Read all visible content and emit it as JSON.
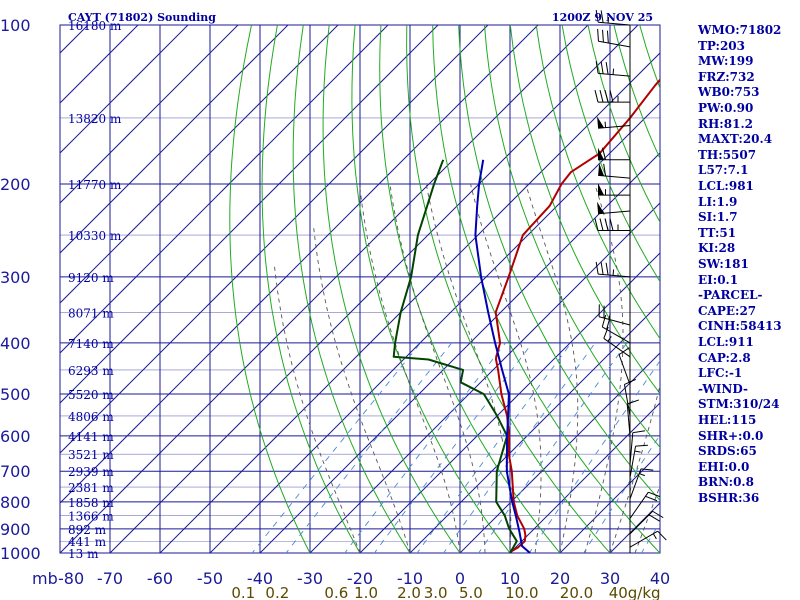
{
  "header": {
    "station": "CAYT (71802) Sounding",
    "time": "1200Z  9 NOV 25"
  },
  "colors": {
    "grid": "#1a1a9a",
    "dry_adiabat": "#22aa22",
    "moist_adiabat": "#555555",
    "mixing_ratio": "#4a8ad0",
    "temperature": "#b00000",
    "dewpoint": "#004400",
    "parcel": "#0000b0",
    "label": "#0000a0",
    "mixing_label": "#5a4a00"
  },
  "chart_data": {
    "type": "line",
    "title": "CAYT (71802) Sounding",
    "x_label": "",
    "y_label": "mb",
    "xlim": [
      -80,
      40
    ],
    "ylim": [
      1000,
      100
    ],
    "y_scale": "log",
    "grid": true,
    "x_ticks": [
      "-80",
      "-70",
      "-60",
      "-50",
      "-40",
      "-30",
      "-20",
      "-10",
      "0",
      "10",
      "20",
      "30",
      "40"
    ],
    "pressure_ticks": [
      100,
      200,
      300,
      400,
      500,
      600,
      700,
      800,
      900,
      1000
    ],
    "height_labels": [
      {
        "p": 100,
        "text": "16180 m"
      },
      {
        "p": 150,
        "text": "13820 m"
      },
      {
        "p": 200,
        "text": "11770 m"
      },
      {
        "p": 250,
        "text": "10330 m"
      },
      {
        "p": 300,
        "text": "9120 m"
      },
      {
        "p": 350,
        "text": "8071 m"
      },
      {
        "p": 400,
        "text": "7140 m"
      },
      {
        "p": 450,
        "text": "6293 m"
      },
      {
        "p": 500,
        "text": "5520 m"
      },
      {
        "p": 550,
        "text": "4806 m"
      },
      {
        "p": 600,
        "text": "4141 m"
      },
      {
        "p": 650,
        "text": "3521 m"
      },
      {
        "p": 700,
        "text": "2939 m"
      },
      {
        "p": 750,
        "text": "2381 m"
      },
      {
        "p": 800,
        "text": "1858 m"
      },
      {
        "p": 850,
        "text": "1366 m"
      },
      {
        "p": 900,
        "text": "892 m"
      },
      {
        "p": 950,
        "text": "441 m"
      },
      {
        "p": 1000,
        "text": "13 m"
      }
    ],
    "mixing_ratio_labels": [
      "0.1",
      "0.2",
      "0.6",
      "1.0",
      "2.0",
      "3.0",
      "5.0",
      "10.0",
      "20.0",
      "40g/kg"
    ],
    "mixing_ratio_values": [
      0.1,
      0.2,
      0.6,
      1.0,
      2.0,
      3.0,
      5.0,
      10.0,
      20.0,
      40.0
    ],
    "mixing_ratio_label_pressure": 1050,
    "dry_adiabats_thetaC": [
      -30,
      -20,
      -10,
      0,
      10,
      20,
      30,
      40,
      50,
      60,
      70,
      80,
      90,
      100,
      110,
      120,
      130,
      140,
      150,
      160,
      170,
      180
    ],
    "moist_adiabats_thetaC": [
      -20,
      -10,
      0,
      5,
      10,
      15,
      20,
      25,
      30,
      35
    ],
    "skew": 1.0,
    "series": [
      {
        "key": "temperature",
        "points": [
          [
            1000,
            10.0
          ],
          [
            990,
            10.0
          ],
          [
            975,
            10.5
          ],
          [
            950,
            10.6
          ],
          [
            925,
            9.5
          ],
          [
            900,
            8.0
          ],
          [
            850,
            4.0
          ],
          [
            800,
            0.5
          ],
          [
            700,
            -6.0
          ],
          [
            650,
            -10.0
          ],
          [
            600,
            -13.6
          ],
          [
            550,
            -18.0
          ],
          [
            500,
            -23.5
          ],
          [
            450,
            -29.0
          ],
          [
            430,
            -31.5
          ],
          [
            425,
            -32.0
          ],
          [
            400,
            -34.0
          ],
          [
            350,
            -41.0
          ],
          [
            300,
            -45.5
          ],
          [
            250,
            -51.0
          ],
          [
            220,
            -51.5
          ],
          [
            200,
            -53.5
          ],
          [
            190,
            -54.0
          ],
          [
            175,
            -52.0
          ],
          [
            150,
            -53.0
          ],
          [
            130,
            -54.5
          ],
          [
            110,
            -55.5
          ],
          [
            100,
            -58.0
          ]
        ]
      },
      {
        "key": "dewpoint",
        "points": [
          [
            1000,
            10.0
          ],
          [
            950,
            9.0
          ],
          [
            900,
            5.0
          ],
          [
            850,
            1.5
          ],
          [
            800,
            -3.0
          ],
          [
            700,
            -9.0
          ],
          [
            600,
            -14.0
          ],
          [
            550,
            -20.0
          ],
          [
            500,
            -27.0
          ],
          [
            475,
            -34.0
          ],
          [
            450,
            -36.0
          ],
          [
            430,
            -45.0
          ],
          [
            425,
            -52.5
          ],
          [
            400,
            -55.0
          ],
          [
            350,
            -60.0
          ],
          [
            300,
            -65.0
          ],
          [
            250,
            -72.0
          ],
          [
            220,
            -76.0
          ],
          [
            200,
            -79.0
          ],
          [
            180,
            -82.0
          ]
        ]
      },
      {
        "key": "parcel",
        "points": [
          [
            1000,
            14.0
          ],
          [
            970,
            11.0
          ],
          [
            911,
            7.6
          ],
          [
            850,
            3.7
          ],
          [
            800,
            0.2
          ],
          [
            700,
            -7.0
          ],
          [
            600,
            -14.0
          ],
          [
            550,
            -17.8
          ],
          [
            500,
            -22.0
          ],
          [
            450,
            -28.2
          ],
          [
            400,
            -35.0
          ],
          [
            350,
            -42.5
          ],
          [
            300,
            -51.0
          ],
          [
            250,
            -60.5
          ],
          [
            220,
            -66.0
          ],
          [
            200,
            -70.0
          ],
          [
            180,
            -74.0
          ]
        ]
      }
    ],
    "wind_barbs": [
      {
        "p": 100,
        "dir": 275,
        "spd": 25
      },
      {
        "p": 110,
        "dir": 280,
        "spd": 30
      },
      {
        "p": 125,
        "dir": 275,
        "spd": 35
      },
      {
        "p": 140,
        "dir": 270,
        "spd": 45
      },
      {
        "p": 155,
        "dir": 265,
        "spd": 55
      },
      {
        "p": 180,
        "dir": 270,
        "spd": 60
      },
      {
        "p": 195,
        "dir": 275,
        "spd": 60
      },
      {
        "p": 210,
        "dir": 270,
        "spd": 55
      },
      {
        "p": 225,
        "dir": 265,
        "spd": 50
      },
      {
        "p": 245,
        "dir": 270,
        "spd": 45
      },
      {
        "p": 300,
        "dir": 275,
        "spd": 35
      },
      {
        "p": 370,
        "dir": 285,
        "spd": 25
      },
      {
        "p": 400,
        "dir": 300,
        "spd": 20
      },
      {
        "p": 425,
        "dir": 305,
        "spd": 15
      },
      {
        "p": 480,
        "dir": 340,
        "spd": 10
      },
      {
        "p": 550,
        "dir": 350,
        "spd": 10
      },
      {
        "p": 600,
        "dir": 355,
        "spd": 10
      },
      {
        "p": 680,
        "dir": 5,
        "spd": 10
      },
      {
        "p": 720,
        "dir": 10,
        "spd": 15
      },
      {
        "p": 790,
        "dir": 20,
        "spd": 15
      },
      {
        "p": 860,
        "dir": 35,
        "spd": 20
      },
      {
        "p": 920,
        "dir": 45,
        "spd": 20
      },
      {
        "p": 975,
        "dir": 60,
        "spd": 15
      }
    ]
  },
  "indices": [
    "WMO:71802",
    "TP:203",
    "MW:199",
    "FRZ:732",
    "WB0:753",
    "PW:0.90",
    "RH:81.2",
    "MAXT:20.4",
    "TH:5507",
    "L57:7.1",
    "LCL:981",
    "LI:1.9",
    "SI:1.7",
    "TT:51",
    "KI:28",
    "SW:181",
    "EI:0.1",
    "-PARCEL-",
    "CAPE:27",
    "CINH:58413",
    "LCL:911",
    "CAP:2.8",
    "LFC:-1",
    "-WIND-",
    "STM:310/24",
    "HEL:115",
    "SHR+:0.0",
    "SRDS:65",
    "EHI:0.0",
    "BRN:0.8",
    "BSHR:36"
  ]
}
